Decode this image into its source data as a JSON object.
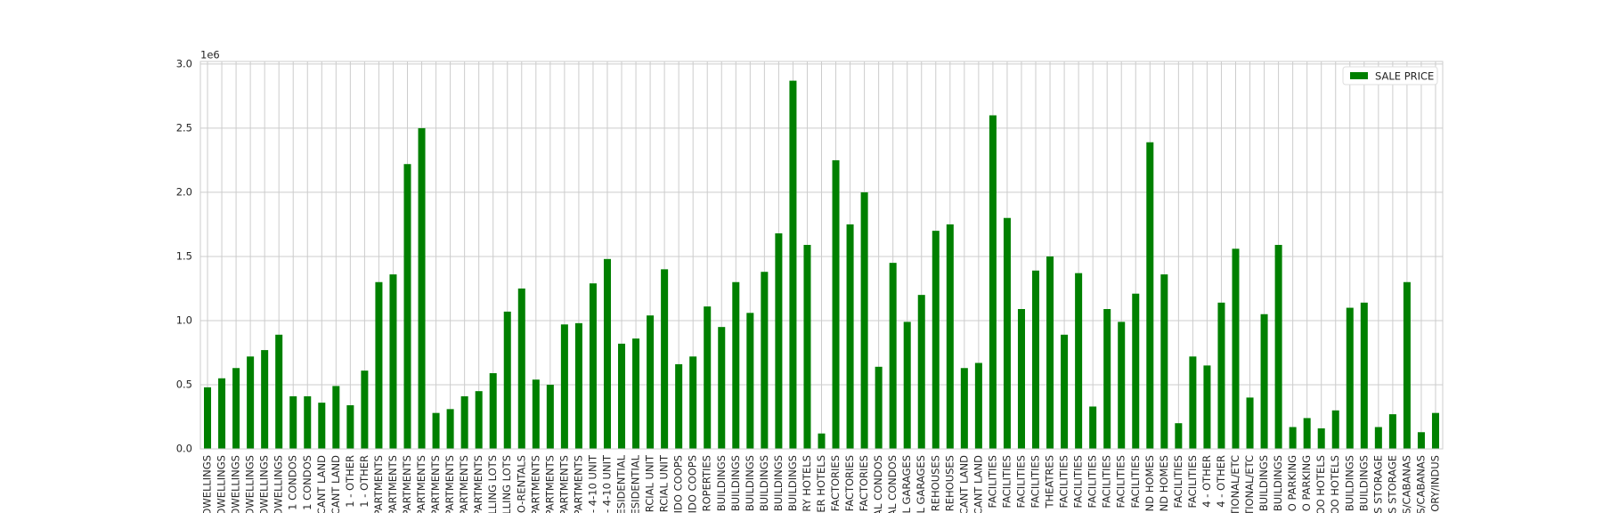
{
  "chart_data": {
    "type": "bar",
    "offset_label": "1e6",
    "categories": [
      "OWELLINGS",
      "OWELLINGS",
      "OWELLINGS",
      "OWELLINGS",
      "OWELLINGS",
      "OWELLINGS",
      "1 CONDOS",
      "1 CONDOS",
      "CANT LAND",
      "CANT LAND",
      "1 - OTHER",
      "1 - OTHER",
      "PARTMENTS",
      "PARTMENTS",
      "PARTMENTS",
      "PARTMENTS",
      "PARTMENTS",
      "PARTMENTS",
      "PARTMENTS",
      "PARTMENTS",
      "LLING LOTS",
      "LLING LOTS",
      "O-RENTALS",
      "PARTMENTS",
      "PARTMENTS",
      "PARTMENTS",
      "PARTMENTS",
      "- 4-10 UNIT",
      "- 4-10 UNIT",
      "ESIDENTIAL",
      "ESIDENTIAL",
      "RCIAL UNIT",
      "RCIAL UNIT",
      "IDO COOPS",
      "IDO COOPS",
      "ROPERTIES",
      "BUILDINGS",
      "BUILDINGS",
      "BUILDINGS",
      "BUILDINGS",
      "BUILDINGS",
      "BUILDINGS",
      "RY HOTELS",
      "ER HOTELS",
      "FACTORIES",
      "FACTORIES",
      "FACTORIES",
      "AL CONDOS",
      "AL CONDOS",
      "L GARAGES",
      "L GARAGES",
      "REHOUSES",
      "REHOUSES",
      "CANT LAND",
      "CANT LAND",
      "FACILITIES",
      "FACILITIES",
      "FACILITIES",
      "FACILITIES",
      "THEATRES",
      "FACILITIES",
      "FACILITIES",
      "FACILITIES",
      "FACILITIES",
      "FACILITIES",
      "FACILITIES",
      "ND HOMES",
      "ND HOMES",
      "FACILITIES",
      "FACILITIES",
      "4 - OTHER",
      "4 - OTHER",
      "TIONAL/ETC",
      "TIONAL/ETC",
      "BUILDINGS",
      "BUILDINGS",
      "O PARKING",
      "O PARKING",
      "OO HOTELS",
      "OO HOTELS",
      "BUILDINGS",
      "BUILDINGS",
      "S STORAGE",
      "S STORAGE",
      "S/CABANAS",
      "S/CABANAS",
      "ORY/INDUS"
    ],
    "series": [
      {
        "name": "SALE PRICE",
        "color": "#008000",
        "values": [
          480000,
          550000,
          630000,
          720000,
          770000,
          890000,
          410000,
          410000,
          360000,
          490000,
          340000,
          610000,
          1300000,
          1360000,
          2220000,
          2500000,
          280000,
          310000,
          410000,
          450000,
          590000,
          1070000,
          1250000,
          540000,
          500000,
          970000,
          980000,
          1290000,
          1480000,
          820000,
          860000,
          1040000,
          1400000,
          660000,
          720000,
          1110000,
          950000,
          1300000,
          1060000,
          1380000,
          1680000,
          2870000,
          1590000,
          120000,
          2250000,
          1750000,
          2000000,
          640000,
          1450000,
          990000,
          1200000,
          1700000,
          1750000,
          630000,
          670000,
          2600000,
          1800000,
          1090000,
          1390000,
          1500000,
          890000,
          1370000,
          330000,
          1090000,
          990000,
          1210000,
          2390000,
          1360000,
          200000,
          720000,
          650000,
          1140000,
          1560000,
          400000,
          1050000,
          1590000,
          170000,
          240000,
          160000,
          300000,
          1100000,
          1140000,
          170000,
          270000,
          1300000,
          130000,
          280000
        ]
      }
    ],
    "ylim": [
      0,
      3020000
    ],
    "yticks": [
      {
        "value": 0,
        "label": "0.0"
      },
      {
        "value": 500000,
        "label": "0.5"
      },
      {
        "value": 1000000,
        "label": "1.0"
      },
      {
        "value": 1500000,
        "label": "1.5"
      },
      {
        "value": 2000000,
        "label": "2.0"
      },
      {
        "value": 2500000,
        "label": "2.5"
      },
      {
        "value": 3000000,
        "label": "3.0"
      }
    ],
    "grid": true,
    "legend": "upper right"
  }
}
